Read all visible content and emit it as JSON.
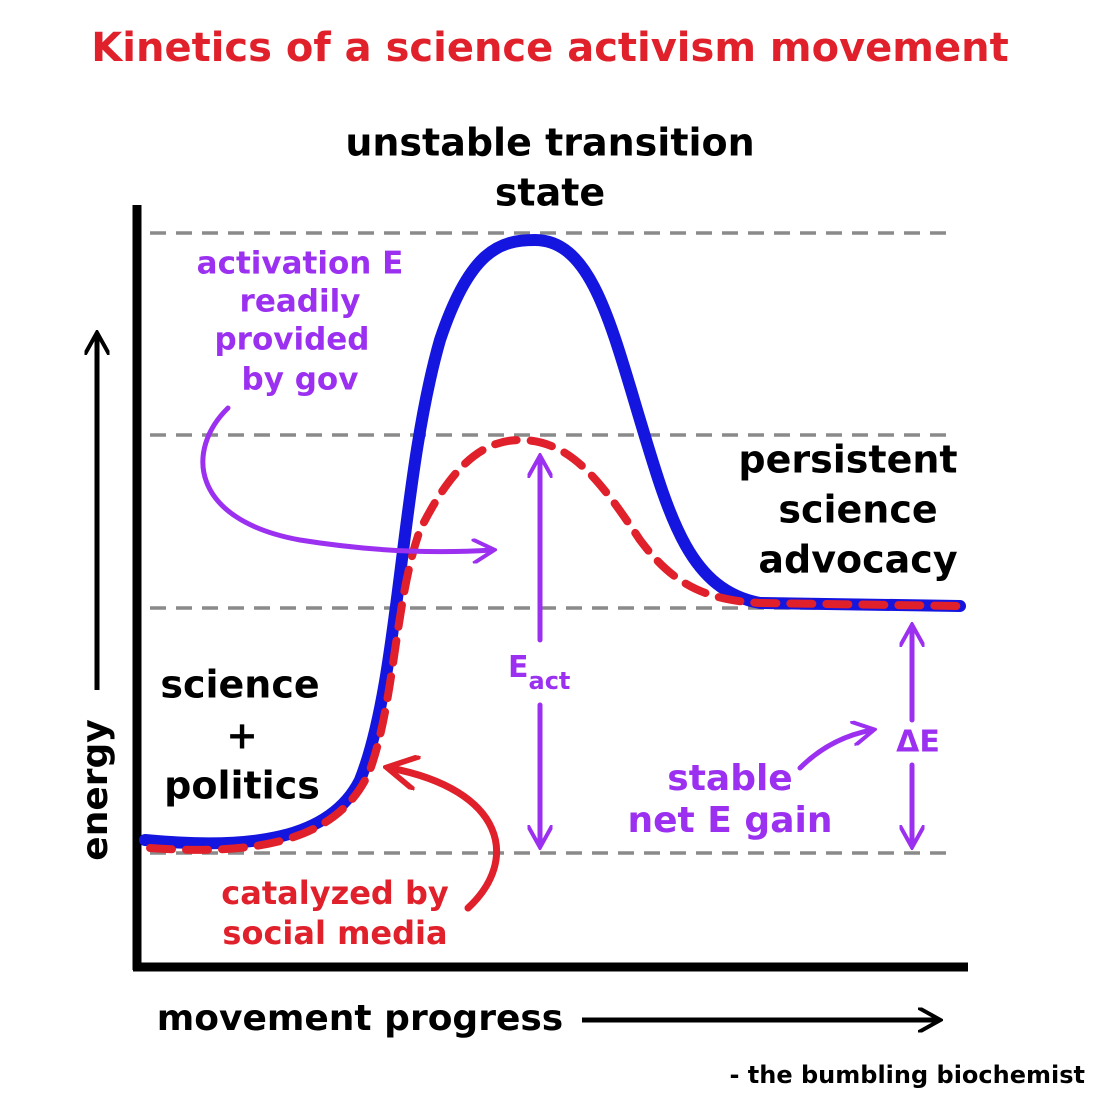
{
  "title": "Kinetics of a science activism movement",
  "transition_state": [
    "unstable transition",
    "state"
  ],
  "activation_note": [
    "activation E",
    "readily",
    "provided",
    "by gov"
  ],
  "product": [
    "persistent",
    "science",
    "advocacy"
  ],
  "reactant": [
    "science",
    "+",
    "politics"
  ],
  "activation_energy": {
    "symbol": "E",
    "subscript": "act"
  },
  "delta_e": "ΔE",
  "gain_note": [
    "stable",
    "net E gain"
  ],
  "catalyst_note": [
    "catalyzed by",
    "social media"
  ],
  "y_axis_label": "energy",
  "x_axis_label": "movement progress",
  "credit": "- the bumbling biochemist"
}
